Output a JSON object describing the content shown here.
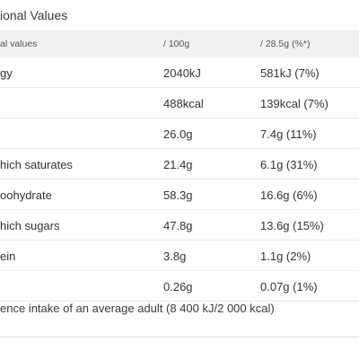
{
  "title": "ional Values",
  "table": {
    "headers": {
      "name": "al values",
      "per100": "/ 100g",
      "portion": "/ 28.5g (%*)"
    },
    "rows": [
      {
        "name": "gy",
        "per100": "2040kJ",
        "portion": "581kJ (7%)"
      },
      {
        "name": "",
        "per100": "488kcal",
        "portion": "139kcal (7%)"
      },
      {
        "name": "",
        "per100": "26.0g",
        "portion": "7.4g (11%)"
      },
      {
        "name": "hich saturates",
        "per100": "21.4g",
        "portion": "6.1g (31%)"
      },
      {
        "name": "oohydrate",
        "per100": "58.3g",
        "portion": "16.6g (6%)"
      },
      {
        "name": "hich sugars",
        "per100": "47.8g",
        "portion": "13.6g (15%)"
      },
      {
        "name": "ein",
        "per100": "3.8g",
        "portion": "1.1g (2%)"
      },
      {
        "name": "",
        "per100": "0.26g",
        "portion": "0.07g (1%)"
      }
    ]
  },
  "footnote": "ence intake of an average adult (8 400 kJ/2 000 kcal)"
}
